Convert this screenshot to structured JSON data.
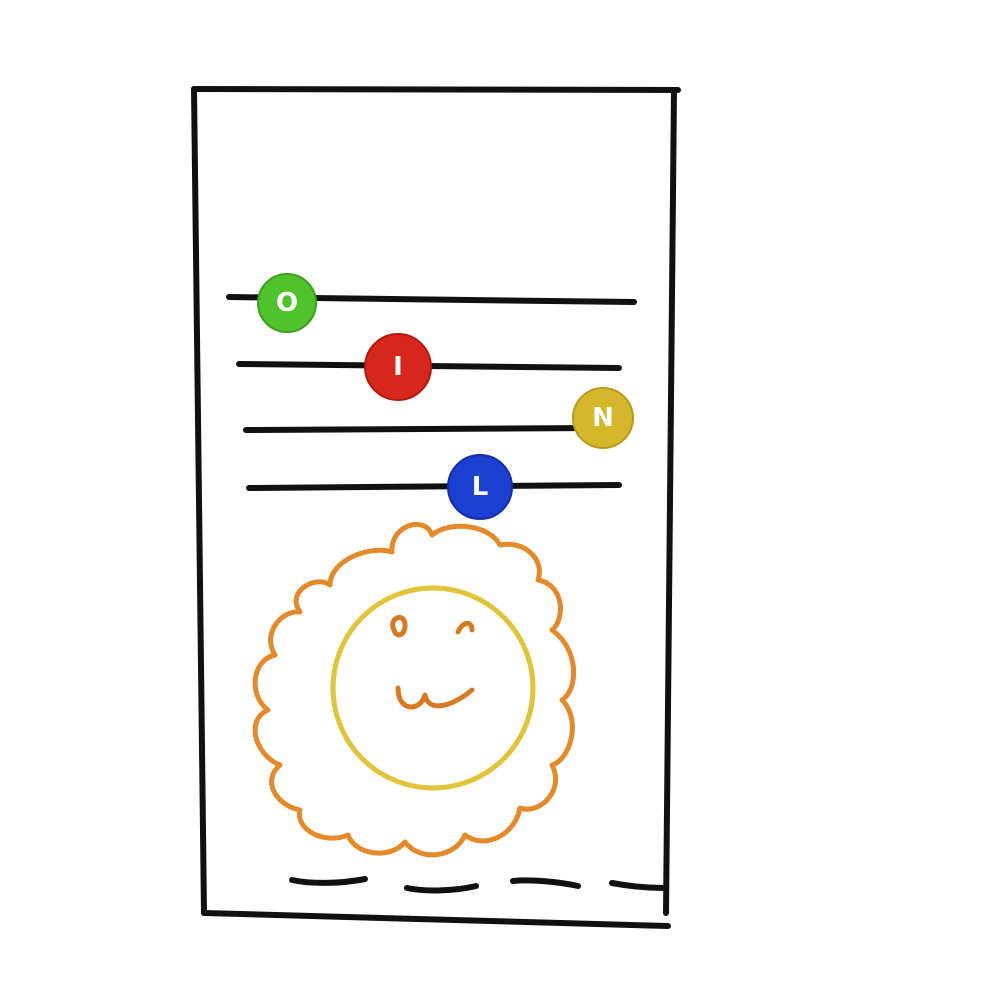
{
  "sketch": {
    "frame": {
      "color": "#111111"
    },
    "rows": [
      {
        "letter": "O",
        "bead_color": "#4fc32b",
        "bead_outline": "#3da01f"
      },
      {
        "letter": "I",
        "bead_color": "#d7261b",
        "bead_outline": "#b01a12"
      },
      {
        "letter": "N",
        "bead_color": "#d6b72a",
        "bead_outline": "#b89a1d"
      },
      {
        "letter": "L",
        "bead_color": "#1b3fd0",
        "bead_outline": "#142fa8"
      }
    ],
    "lion": {
      "mane_color": "#e58a2a",
      "face_color": "#e0c43a",
      "features_color": "#d77a22"
    }
  }
}
